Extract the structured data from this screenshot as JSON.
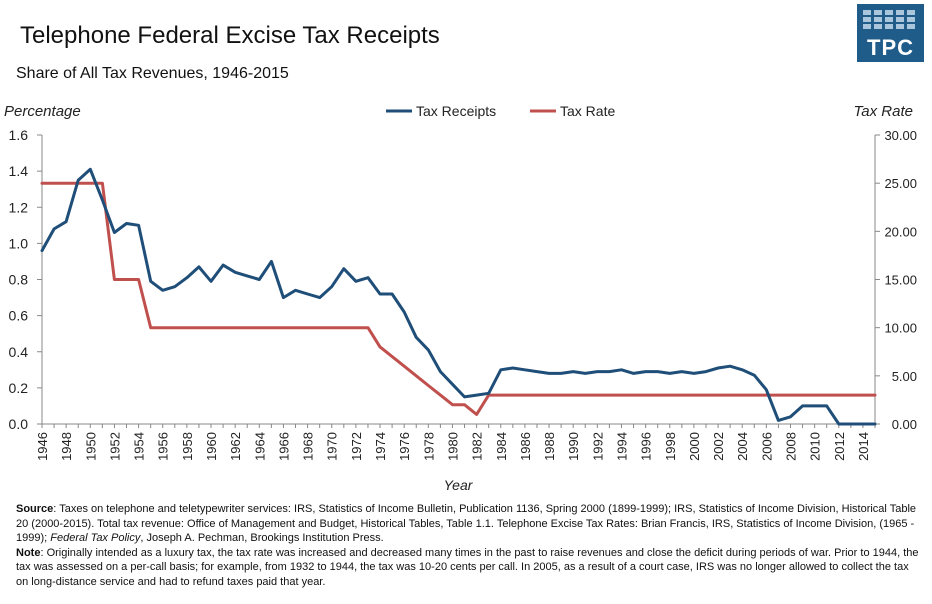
{
  "header": {
    "title": "Telephone Federal Excise Tax Receipts",
    "subtitle": "Share of All Tax Revenues, 1946-2015"
  },
  "logo": {
    "text": "TPC",
    "color": "#1f5c8a"
  },
  "chart_data": {
    "type": "line",
    "ylabel_left": "Percentage",
    "ylabel_right": "Tax Rate",
    "xlabel": "Year",
    "xlim": [
      1946,
      2015
    ],
    "ylim_left": [
      0,
      1.6
    ],
    "ylim_right": [
      0,
      30
    ],
    "yticks_left": [
      "0.0",
      "0.2",
      "0.4",
      "0.6",
      "0.8",
      "1.0",
      "1.2",
      "1.4",
      "1.6"
    ],
    "yticks_right": [
      "0.00",
      "5.00",
      "10.00",
      "15.00",
      "20.00",
      "25.00",
      "30.00"
    ],
    "xticks": [
      "1946",
      "1948",
      "1950",
      "1952",
      "1954",
      "1956",
      "1958",
      "1960",
      "1962",
      "1964",
      "1966",
      "1968",
      "1970",
      "1972",
      "1974",
      "1976",
      "1978",
      "1980",
      "1982",
      "1984",
      "1986",
      "1988",
      "1990",
      "1992",
      "1994",
      "1996",
      "1998",
      "2000",
      "2002",
      "2004",
      "2006",
      "2008",
      "2010",
      "2012",
      "2014"
    ],
    "legend_position": "top-center",
    "grid": false,
    "series": [
      {
        "name": "Tax Receipts",
        "axis": "left",
        "color": "#1f4e79",
        "x": [
          1946,
          1947,
          1948,
          1949,
          1950,
          1951,
          1952,
          1953,
          1954,
          1955,
          1956,
          1957,
          1958,
          1959,
          1960,
          1961,
          1962,
          1963,
          1964,
          1965,
          1966,
          1967,
          1968,
          1969,
          1970,
          1971,
          1972,
          1973,
          1974,
          1975,
          1976,
          1977,
          1978,
          1979,
          1980,
          1981,
          1982,
          1983,
          1984,
          1985,
          1986,
          1987,
          1988,
          1989,
          1990,
          1991,
          1992,
          1993,
          1994,
          1995,
          1996,
          1997,
          1998,
          1999,
          2000,
          2001,
          2002,
          2003,
          2004,
          2005,
          2006,
          2007,
          2008,
          2009,
          2010,
          2011,
          2012,
          2013,
          2014,
          2015
        ],
        "y": [
          0.96,
          1.08,
          1.12,
          1.35,
          1.41,
          1.24,
          1.06,
          1.11,
          1.1,
          0.79,
          0.74,
          0.76,
          0.81,
          0.87,
          0.79,
          0.88,
          0.84,
          0.82,
          0.8,
          0.9,
          0.7,
          0.74,
          0.72,
          0.7,
          0.76,
          0.86,
          0.79,
          0.81,
          0.72,
          0.72,
          0.62,
          0.48,
          0.41,
          0.29,
          0.22,
          0.15,
          0.16,
          0.17,
          0.3,
          0.31,
          0.3,
          0.29,
          0.28,
          0.28,
          0.29,
          0.28,
          0.29,
          0.29,
          0.3,
          0.28,
          0.29,
          0.29,
          0.28,
          0.29,
          0.28,
          0.29,
          0.31,
          0.32,
          0.3,
          0.27,
          0.19,
          0.02,
          0.04,
          0.1,
          0.1,
          0.1,
          0.0,
          0.0,
          0.0,
          0.0
        ]
      },
      {
        "name": "Tax Rate",
        "axis": "right",
        "color": "#c0504d",
        "x": [
          1946,
          1947,
          1948,
          1949,
          1950,
          1951,
          1952,
          1953,
          1954,
          1955,
          1956,
          1957,
          1958,
          1959,
          1960,
          1961,
          1962,
          1963,
          1964,
          1965,
          1966,
          1967,
          1968,
          1969,
          1970,
          1971,
          1972,
          1973,
          1974,
          1975,
          1976,
          1977,
          1978,
          1979,
          1980,
          1981,
          1982,
          1983,
          1984,
          1985,
          1986,
          1987,
          1988,
          1989,
          1990,
          1991,
          1992,
          1993,
          1994,
          1995,
          1996,
          1997,
          1998,
          1999,
          2000,
          2001,
          2002,
          2003,
          2004,
          2005,
          2006,
          2007,
          2008,
          2009,
          2010,
          2011,
          2012,
          2013,
          2014,
          2015
        ],
        "y": [
          25,
          25,
          25,
          25,
          25,
          25,
          15,
          15,
          15,
          10,
          10,
          10,
          10,
          10,
          10,
          10,
          10,
          10,
          10,
          10,
          10,
          10,
          10,
          10,
          10,
          10,
          10,
          10,
          8,
          7,
          6,
          5,
          4,
          3,
          2,
          2,
          1,
          3,
          3,
          3,
          3,
          3,
          3,
          3,
          3,
          3,
          3,
          3,
          3,
          3,
          3,
          3,
          3,
          3,
          3,
          3,
          3,
          3,
          3,
          3,
          3,
          3,
          3,
          3,
          3,
          3,
          3,
          3,
          3,
          3
        ]
      }
    ]
  },
  "footer": {
    "source_label": "Source",
    "source_text_1": ": Taxes on telephone and teletypewriter services: IRS, Statistics of Income Bulletin, Publication 1136, Spring 2000 (1899-1999); IRS, Statistics of Income Division, Historical Table 20 (2000-2015). Total tax revenue: Office of Management and Budget, Historical Tables, Table 1.1. Telephone Excise Tax Rates: Brian Francis, IRS, Statistics of Income Division, (1965 - 1999); ",
    "source_italic": "Federal Tax Policy",
    "source_text_2": ", Joseph A. Pechman, Brookings Institution Press.",
    "note_label": "Note",
    "note_text": ": Originally intended as a luxury tax, the tax rate was increased and decreased many times in the past to raise revenues and close the deficit during periods of war. Prior to 1944, the tax was assessed on a per-call basis; for example, from 1932 to 1944, the tax was 10-20 cents per call. In 2005, as a result of a court case, IRS was no longer allowed to collect the tax on long-distance service and had to refund taxes paid that year."
  }
}
